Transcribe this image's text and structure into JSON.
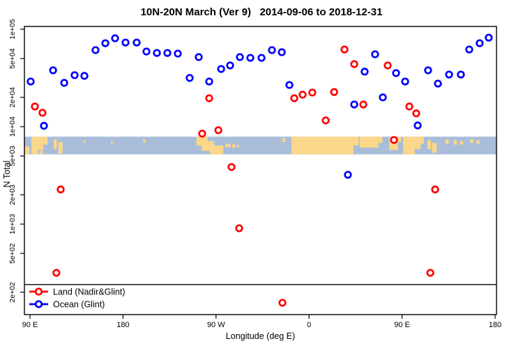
{
  "title": "10N-20N March (Ver 9)   2014-09-06 to 2018-12-31",
  "colors": {
    "land_series": "#ff0000",
    "ocean_series": "#0000ff",
    "map_ocean": "#a9bdd9",
    "map_land": "#fbd78a",
    "axis": "#000000"
  },
  "chart_data": {
    "type": "scatter",
    "title": "10N-20N March (Ver 9)   2014-09-06 to 2018-12-31",
    "xlabel": "Longitude (deg E)",
    "ylabel": "N Total",
    "y_scale": "log",
    "ylim": [
      118,
      107000
    ],
    "xlim_deg_east": [
      84.6,
      541.3
    ],
    "grid": false,
    "legend_position": "bottom-left-inside",
    "x_ticks": [
      {
        "lon": 90,
        "label": "90 E"
      },
      {
        "lon": 180,
        "label": "180"
      },
      {
        "lon": 270,
        "label": "90 W"
      },
      {
        "lon": 360,
        "label": "0"
      },
      {
        "lon": 450,
        "label": "90 E"
      },
      {
        "lon": 540,
        "label": "180"
      }
    ],
    "y_ticks": [
      {
        "value": 100000,
        "label": "1e+05"
      },
      {
        "value": 50000,
        "label": "5e+04"
      },
      {
        "value": 20000,
        "label": "2e+04"
      },
      {
        "value": 10000,
        "label": "1e+04"
      },
      {
        "value": 5000,
        "label": "5e+03"
      },
      {
        "value": 2000,
        "label": "2e+03"
      },
      {
        "value": 1000,
        "label": "1e+03"
      },
      {
        "value": 500,
        "label": "5e+02"
      },
      {
        "value": 200,
        "label": "2e+02"
      }
    ],
    "reference_line_value": 240,
    "series": [
      {
        "key": "land",
        "name": "Land (Nadir&Glint)",
        "color_key": "land_series",
        "marker": "open-circle",
        "points": [
          [
            94.7,
            16100
          ],
          [
            102.1,
            13900
          ],
          [
            115.6,
            316
          ],
          [
            119.7,
            2270
          ],
          [
            256.6,
            8490
          ],
          [
            263.4,
            19600
          ],
          [
            272.2,
            9210
          ],
          [
            285.0,
            3850
          ],
          [
            292.4,
            906
          ],
          [
            334.2,
            156
          ],
          [
            345.7,
            19600
          ],
          [
            353.8,
            21300
          ],
          [
            363.2,
            22400
          ],
          [
            376.1,
            11600
          ],
          [
            384.2,
            22700
          ],
          [
            394.3,
            62000
          ],
          [
            403.7,
            43900
          ],
          [
            412.5,
            16900
          ],
          [
            436.1,
            42500
          ],
          [
            442.2,
            7310
          ],
          [
            457.0,
            16100
          ],
          [
            463.7,
            13700
          ],
          [
            477.3,
            316
          ],
          [
            482.0,
            2270
          ]
        ]
      },
      {
        "key": "ocean",
        "name": "Ocean (Glint)",
        "color_key": "ocean_series",
        "marker": "open-circle",
        "points": [
          [
            90.7,
            29100
          ],
          [
            103.5,
            10200
          ],
          [
            112.3,
            37900
          ],
          [
            123.1,
            28200
          ],
          [
            133.2,
            33800
          ],
          [
            142.6,
            33200
          ],
          [
            153.4,
            61100
          ],
          [
            162.9,
            71900
          ],
          [
            172.3,
            80700
          ],
          [
            182.4,
            73100
          ],
          [
            193.2,
            73100
          ],
          [
            202.7,
            59100
          ],
          [
            212.8,
            57100
          ],
          [
            222.9,
            57100
          ],
          [
            233.0,
            56200
          ],
          [
            244.5,
            31600
          ],
          [
            253.3,
            51800
          ],
          [
            263.4,
            29100
          ],
          [
            274.9,
            39100
          ],
          [
            283.6,
            42500
          ],
          [
            293.1,
            51800
          ],
          [
            303.2,
            50900
          ],
          [
            314.0,
            50900
          ],
          [
            324.1,
            61100
          ],
          [
            333.6,
            58100
          ],
          [
            341.0,
            26800
          ],
          [
            397.6,
            3210
          ],
          [
            403.7,
            16900
          ],
          [
            413.8,
            36700
          ],
          [
            423.9,
            55300
          ],
          [
            431.4,
            20000
          ],
          [
            444.2,
            35500
          ],
          [
            453.0,
            29100
          ],
          [
            465.1,
            10300
          ],
          [
            475.2,
            37900
          ],
          [
            484.7,
            27700
          ],
          [
            495.5,
            34300
          ],
          [
            506.9,
            34300
          ],
          [
            515.0,
            62000
          ],
          [
            525.1,
            71900
          ],
          [
            533.9,
            82000
          ]
        ]
      }
    ],
    "map_band": {
      "description": "world coastline strip for 10N-20N latitude band",
      "n_top": 7900,
      "n_bottom": 5200,
      "land_patches": [
        [
          84.6,
          89.5,
          0.55,
          1
        ],
        [
          91.5,
          97.5,
          0,
          1
        ],
        [
          97.5,
          103,
          0,
          0.75
        ],
        [
          103,
          107,
          0,
          0.45
        ],
        [
          99,
          102.5,
          0.8,
          1
        ],
        [
          113,
          116,
          0.15,
          0.7
        ],
        [
          117.5,
          121.5,
          0.3,
          0.95
        ],
        [
          142,
          143.5,
          0.2,
          0.35
        ],
        [
          168.5,
          170,
          0.25,
          0.4
        ],
        [
          199.5,
          201.5,
          0.15,
          0.35
        ],
        [
          251,
          262,
          0,
          0.5
        ],
        [
          256,
          268,
          0.25,
          0.8
        ],
        [
          264,
          277,
          0.5,
          1
        ],
        [
          279,
          284,
          0.4,
          0.6
        ],
        [
          285.5,
          289,
          0.45,
          0.62
        ],
        [
          290.5,
          292.5,
          0.48,
          0.6
        ],
        [
          334,
          337,
          0.1,
          0.3
        ],
        [
          343,
          403,
          0,
          1
        ],
        [
          403,
          408,
          0,
          0.5
        ],
        [
          409,
          427,
          0,
          0.62
        ],
        [
          427,
          431,
          0,
          0.35
        ],
        [
          437.5,
          446,
          0.05,
          0.75
        ],
        [
          446,
          449,
          0,
          0.3
        ],
        [
          451,
          462,
          0,
          1
        ],
        [
          462,
          468,
          0,
          0.7
        ],
        [
          468,
          471,
          0,
          0.4
        ],
        [
          459,
          462.5,
          0.85,
          1
        ],
        [
          474.5,
          478,
          0.2,
          0.7
        ],
        [
          479,
          483.5,
          0.35,
          0.9
        ],
        [
          492,
          495,
          0.15,
          0.4
        ],
        [
          500,
          503,
          0.2,
          0.45
        ],
        [
          506,
          509,
          0.25,
          0.45
        ],
        [
          516,
          519,
          0.15,
          0.35
        ],
        [
          522,
          525,
          0.2,
          0.4
        ]
      ]
    }
  }
}
